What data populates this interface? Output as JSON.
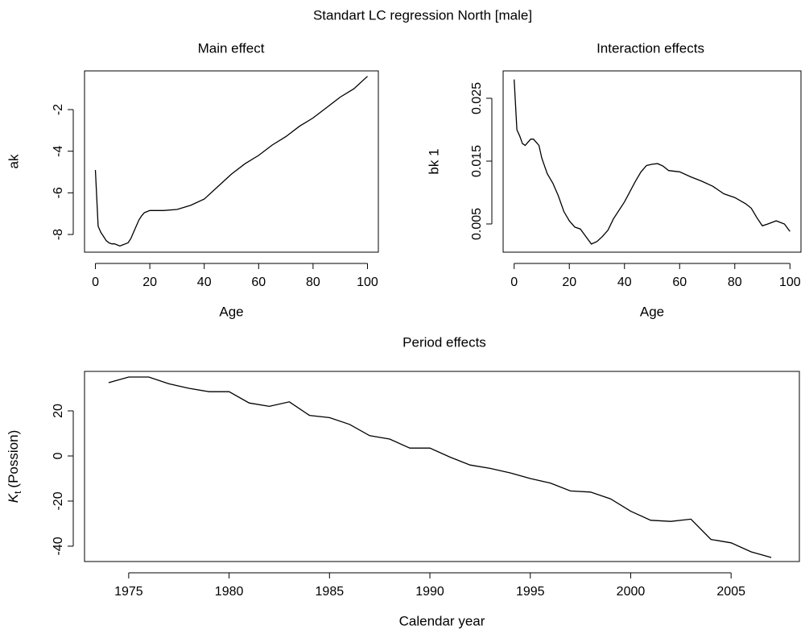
{
  "title": "Standart LC regression North [male]",
  "chart_data": [
    {
      "type": "line",
      "title": "Main effect",
      "xlabel": "Age",
      "ylabel": "ak",
      "color": "#000000",
      "x": [
        0,
        1,
        2,
        3,
        4,
        5,
        6,
        7,
        8,
        9,
        10,
        11,
        12,
        13,
        14,
        15,
        16,
        17,
        18,
        19,
        20,
        25,
        30,
        35,
        40,
        45,
        50,
        55,
        60,
        65,
        70,
        75,
        80,
        85,
        90,
        95,
        100
      ],
      "values": [
        -4.9,
        -7.6,
        -7.9,
        -8.1,
        -8.3,
        -8.4,
        -8.45,
        -8.45,
        -8.5,
        -8.55,
        -8.5,
        -8.45,
        -8.4,
        -8.2,
        -7.9,
        -7.6,
        -7.3,
        -7.1,
        -6.95,
        -6.9,
        -6.85,
        -6.85,
        -6.8,
        -6.6,
        -6.3,
        -5.7,
        -5.1,
        -4.6,
        -4.2,
        -3.7,
        -3.3,
        -2.8,
        -2.4,
        -1.9,
        -1.4,
        -1.0,
        -0.4
      ],
      "xlim": [
        -4,
        104
      ],
      "ylim": [
        -8.85,
        -0.14
      ],
      "xticks": [
        0,
        20,
        40,
        60,
        80,
        100
      ],
      "yticks": [
        -8,
        -6,
        -4,
        -2
      ]
    },
    {
      "type": "line",
      "title": "Interaction effects",
      "xlabel": "Age",
      "ylabel": "bk 1",
      "color": "#000000",
      "x": [
        0,
        1,
        2,
        3,
        4,
        5,
        6,
        7,
        8,
        9,
        10,
        12,
        14,
        16,
        18,
        20,
        22,
        24,
        26,
        28,
        30,
        32,
        34,
        36,
        40,
        44,
        46,
        48,
        50,
        52,
        54,
        56,
        60,
        64,
        68,
        72,
        76,
        80,
        84,
        86,
        88,
        90,
        92,
        95,
        98,
        100
      ],
      "values": [
        0.028,
        0.02,
        0.019,
        0.0178,
        0.0175,
        0.018,
        0.0185,
        0.0185,
        0.018,
        0.0175,
        0.0155,
        0.013,
        0.0115,
        0.0095,
        0.007,
        0.0055,
        0.0045,
        0.0042,
        0.003,
        0.0018,
        0.0022,
        0.003,
        0.004,
        0.0058,
        0.0085,
        0.0118,
        0.0133,
        0.0143,
        0.0145,
        0.0146,
        0.0142,
        0.0135,
        0.0133,
        0.0125,
        0.0118,
        0.011,
        0.0098,
        0.0092,
        0.0082,
        0.0075,
        0.006,
        0.0047,
        0.005,
        0.0055,
        0.005,
        0.0038
      ],
      "xlim": [
        -4,
        104
      ],
      "ylim": [
        0.00051,
        0.02936
      ],
      "xticks": [
        0,
        20,
        40,
        60,
        80,
        100
      ],
      "yticks": [
        0.005,
        0.015,
        0.025
      ]
    },
    {
      "type": "line",
      "title": "Period effects",
      "xlabel": "Calendar year",
      "ylabel": {
        "symbol": "K",
        "subscript": "t",
        "text": "(Possion)"
      },
      "color": "#000000",
      "x": [
        1974,
        1975,
        1976,
        1977,
        1978,
        1979,
        1980,
        1981,
        1982,
        1983,
        1984,
        1985,
        1986,
        1987,
        1988,
        1989,
        1990,
        1991,
        1992,
        1993,
        1994,
        1995,
        1996,
        1997,
        1998,
        1999,
        2000,
        2001,
        2002,
        2003,
        2004,
        2005,
        2006,
        2007
      ],
      "values": [
        32.5,
        35,
        35,
        32,
        30,
        28.5,
        28.5,
        23.5,
        22,
        24,
        18,
        17,
        14,
        9,
        7.5,
        3.5,
        3.5,
        -0.5,
        -4,
        -5.5,
        -7.5,
        -10,
        -12,
        -15.5,
        -16,
        -19,
        -24.5,
        -28.5,
        -29,
        -28,
        -37,
        -38.5,
        -42.5,
        -45
      ],
      "xlim": [
        1972.8,
        2008.4
      ],
      "ylim": [
        -46.8,
        37.5
      ],
      "xticks": [
        1975,
        1980,
        1985,
        1990,
        1995,
        2000,
        2005
      ],
      "yticks": [
        -40,
        -20,
        0,
        20
      ]
    }
  ]
}
